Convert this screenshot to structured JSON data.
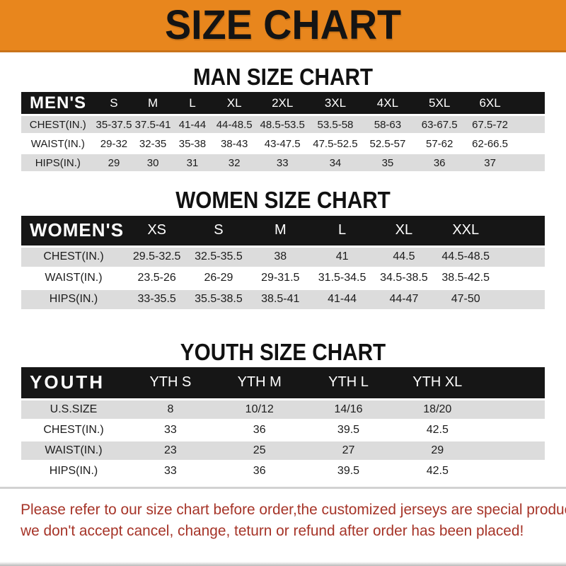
{
  "banner": {
    "title": "SIZE CHART"
  },
  "colors": {
    "banner-bg": "#E8861D",
    "header-bg": "#161616",
    "row-stripe": "#DCDCDC",
    "disclaimer-red": "#A63428"
  },
  "sections": [
    {
      "heading": "MAN SIZE CHART",
      "table": {
        "title": "MEN'S",
        "columns": [
          "S",
          "M",
          "L",
          "XL",
          "2XL",
          "3XL",
          "4XL",
          "5XL",
          "6XL"
        ],
        "rows": [
          {
            "label": "CHEST(IN.)",
            "values": [
              "35-37.5",
              "37.5-41",
              "41-44",
              "44-48.5",
              "48.5-53.5",
              "53.5-58",
              "58-63",
              "63-67.5",
              "67.5-72"
            ]
          },
          {
            "label": "WAIST(IN.)",
            "values": [
              "29-32",
              "32-35",
              "35-38",
              "38-43",
              "43-47.5",
              "47.5-52.5",
              "52.5-57",
              "57-62",
              "62-66.5"
            ]
          },
          {
            "label": "HIPS(IN.)",
            "values": [
              "29",
              "30",
              "31",
              "32",
              "33",
              "34",
              "35",
              "36",
              "37"
            ]
          }
        ]
      }
    },
    {
      "heading": "WOMEN SIZE CHART",
      "table": {
        "title": "WOMEN'S",
        "columns": [
          "XS",
          "S",
          "M",
          "L",
          "XL",
          "XXL"
        ],
        "rows": [
          {
            "label": "CHEST(IN.)",
            "values": [
              "29.5-32.5",
              "32.5-35.5",
              "38",
              "41",
              "44.5",
              "44.5-48.5"
            ]
          },
          {
            "label": "WAIST(IN.)",
            "values": [
              "23.5-26",
              "26-29",
              "29-31.5",
              "31.5-34.5",
              "34.5-38.5",
              "38.5-42.5"
            ]
          },
          {
            "label": "HIPS(IN.)",
            "values": [
              "33-35.5",
              "35.5-38.5",
              "38.5-41",
              "41-44",
              "44-47",
              "47-50"
            ]
          }
        ]
      }
    },
    {
      "heading": "YOUTH SIZE CHART",
      "table": {
        "title": "YOUTH",
        "columns": [
          "YTH S",
          "YTH M",
          "YTH L",
          "YTH XL"
        ],
        "rows": [
          {
            "label": "U.S.SIZE",
            "values": [
              "8",
              "10/12",
              "14/16",
              "18/20"
            ]
          },
          {
            "label": "CHEST(IN.)",
            "values": [
              "33",
              "36",
              "39.5",
              "42.5"
            ]
          },
          {
            "label": "WAIST(IN.)",
            "values": [
              "23",
              "25",
              "27",
              "29"
            ]
          },
          {
            "label": "HIPS(IN.)",
            "values": [
              "33",
              "36",
              "39.5",
              "42.5"
            ]
          }
        ]
      }
    }
  ],
  "disclaimer": {
    "line1": "Please refer to our size chart before order,the customized jerseys are special products,",
    "line2": "we don't accept cancel, change, teturn or refund after order has been placed!"
  }
}
